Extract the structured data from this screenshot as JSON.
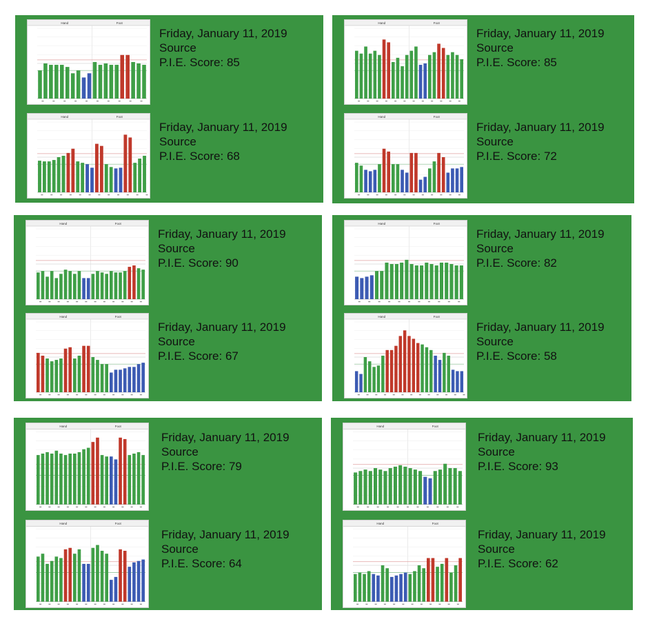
{
  "colors": {
    "panel": "#3a9441",
    "green": "#3f9f47",
    "red": "#c0392b",
    "blue": "#3c5bb3",
    "text": "#111111"
  },
  "chart_data": [
    {
      "type": "bar",
      "title": "",
      "group_labels": [
        "Hand",
        "Foot"
      ],
      "values": [
        40,
        50,
        48,
        48,
        48,
        45,
        36,
        40,
        30,
        36,
        52,
        48,
        50,
        48,
        48,
        62,
        62,
        52,
        50,
        48
      ],
      "colors": [
        "g",
        "g",
        "g",
        "g",
        "g",
        "g",
        "g",
        "g",
        "b",
        "b",
        "g",
        "g",
        "g",
        "g",
        "g",
        "r",
        "r",
        "g",
        "g",
        "g"
      ]
    },
    {
      "type": "bar",
      "title": "",
      "group_labels": [
        "Hand",
        "Foot"
      ],
      "values": [
        45,
        44,
        44,
        46,
        50,
        52,
        56,
        62,
        44,
        42,
        40,
        35,
        69,
        66,
        40,
        36,
        34,
        35,
        82,
        78,
        42,
        48,
        52
      ],
      "colors": [
        "g",
        "g",
        "g",
        "g",
        "g",
        "g",
        "r",
        "r",
        "g",
        "g",
        "b",
        "b",
        "r",
        "r",
        "g",
        "g",
        "b",
        "b",
        "r",
        "r",
        "g",
        "g",
        "g"
      ]
    },
    {
      "type": "bar",
      "title": "",
      "group_labels": [
        "Hand",
        "Foot"
      ],
      "values": [
        68,
        64,
        74,
        64,
        68,
        62,
        84,
        80,
        52,
        58,
        46,
        62,
        68,
        74,
        48,
        50,
        62,
        66,
        78,
        72,
        62,
        66,
        62,
        56
      ],
      "colors": [
        "g",
        "g",
        "g",
        "g",
        "g",
        "g",
        "r",
        "r",
        "g",
        "g",
        "g",
        "g",
        "g",
        "g",
        "b",
        "b",
        "g",
        "g",
        "r",
        "r",
        "g",
        "g",
        "g",
        "g"
      ]
    },
    {
      "type": "bar",
      "title": "",
      "group_labels": [
        "Hand",
        "Foot"
      ],
      "values": [
        42,
        38,
        32,
        30,
        32,
        40,
        62,
        58,
        40,
        40,
        32,
        28,
        56,
        56,
        18,
        22,
        34,
        44,
        56,
        50,
        28,
        34,
        34,
        36
      ],
      "colors": [
        "g",
        "g",
        "b",
        "b",
        "b",
        "g",
        "r",
        "r",
        "g",
        "g",
        "b",
        "b",
        "r",
        "r",
        "b",
        "b",
        "g",
        "g",
        "r",
        "r",
        "b",
        "b",
        "b",
        "b"
      ]
    },
    {
      "type": "bar",
      "title": "",
      "group_labels": [
        "Hand",
        "Foot"
      ],
      "values": [
        38,
        40,
        32,
        40,
        30,
        36,
        42,
        40,
        36,
        40,
        30,
        30,
        36,
        40,
        38,
        36,
        40,
        38,
        38,
        40,
        46,
        48,
        44,
        42
      ],
      "colors": [
        "g",
        "g",
        "g",
        "g",
        "g",
        "g",
        "g",
        "g",
        "g",
        "g",
        "b",
        "b",
        "g",
        "g",
        "g",
        "g",
        "g",
        "g",
        "g",
        "g",
        "r",
        "r",
        "g",
        "g"
      ]
    },
    {
      "type": "bar",
      "title": "",
      "group_labels": [
        "Hand",
        "Foot"
      ],
      "values": [
        56,
        52,
        48,
        44,
        46,
        48,
        62,
        64,
        48,
        52,
        66,
        66,
        50,
        46,
        40,
        40,
        28,
        32,
        32,
        34,
        36,
        36,
        40,
        42
      ],
      "colors": [
        "r",
        "r",
        "g",
        "g",
        "g",
        "g",
        "r",
        "r",
        "g",
        "g",
        "r",
        "r",
        "g",
        "g",
        "g",
        "g",
        "b",
        "b",
        "b",
        "b",
        "b",
        "b",
        "b",
        "b"
      ]
    },
    {
      "type": "bar",
      "title": "",
      "group_labels": [
        "Hand",
        "Foot"
      ],
      "values": [
        32,
        30,
        32,
        34,
        40,
        40,
        52,
        50,
        50,
        52,
        56,
        50,
        48,
        48,
        52,
        50,
        48,
        52,
        52,
        50,
        48,
        48
      ],
      "colors": [
        "b",
        "b",
        "b",
        "b",
        "g",
        "g",
        "g",
        "g",
        "g",
        "g",
        "g",
        "g",
        "g",
        "g",
        "g",
        "g",
        "g",
        "g",
        "g",
        "g",
        "g",
        "g"
      ]
    },
    {
      "type": "bar",
      "title": "",
      "group_labels": [
        "Hand",
        "Foot"
      ],
      "values": [
        30,
        26,
        50,
        44,
        36,
        38,
        52,
        60,
        60,
        66,
        80,
        88,
        80,
        76,
        70,
        68,
        64,
        60,
        52,
        46,
        56,
        52,
        32,
        30,
        30
      ],
      "colors": [
        "b",
        "b",
        "g",
        "g",
        "g",
        "g",
        "g",
        "r",
        "r",
        "r",
        "r",
        "r",
        "r",
        "r",
        "r",
        "g",
        "g",
        "g",
        "b",
        "b",
        "g",
        "g",
        "b",
        "b",
        "b"
      ]
    },
    {
      "type": "bar",
      "title": "",
      "group_labels": [
        "Hand",
        "Foot"
      ],
      "values": [
        68,
        70,
        72,
        70,
        74,
        70,
        68,
        70,
        70,
        72,
        76,
        78,
        86,
        92,
        68,
        66,
        66,
        62,
        92,
        90,
        68,
        70,
        72,
        68
      ],
      "colors": [
        "g",
        "g",
        "g",
        "g",
        "g",
        "g",
        "g",
        "g",
        "g",
        "g",
        "g",
        "g",
        "r",
        "r",
        "g",
        "g",
        "b",
        "b",
        "r",
        "r",
        "g",
        "g",
        "g",
        "g"
      ]
    },
    {
      "type": "bar",
      "title": "",
      "group_labels": [
        "Hand",
        "Foot"
      ],
      "values": [
        62,
        66,
        52,
        56,
        62,
        60,
        72,
        74,
        66,
        72,
        52,
        52,
        74,
        78,
        70,
        66,
        30,
        34,
        72,
        70,
        48,
        54,
        56,
        58
      ],
      "colors": [
        "g",
        "g",
        "g",
        "g",
        "g",
        "g",
        "r",
        "r",
        "g",
        "g",
        "b",
        "b",
        "g",
        "g",
        "g",
        "g",
        "b",
        "b",
        "r",
        "r",
        "b",
        "b",
        "b",
        "b"
      ]
    },
    {
      "type": "bar",
      "title": "",
      "group_labels": [
        "Hand",
        "Foot"
      ],
      "values": [
        44,
        46,
        48,
        46,
        50,
        48,
        46,
        50,
        52,
        54,
        52,
        50,
        48,
        46,
        38,
        36,
        46,
        48,
        56,
        50,
        50,
        46
      ],
      "colors": [
        "g",
        "g",
        "g",
        "g",
        "g",
        "g",
        "g",
        "g",
        "g",
        "g",
        "g",
        "g",
        "g",
        "g",
        "b",
        "b",
        "g",
        "g",
        "g",
        "g",
        "g",
        "g"
      ]
    },
    {
      "type": "bar",
      "title": "",
      "group_labels": [
        "Hand",
        "Foot"
      ],
      "values": [
        38,
        40,
        38,
        42,
        38,
        36,
        50,
        46,
        34,
        36,
        38,
        40,
        38,
        42,
        50,
        46,
        60,
        60,
        48,
        52,
        60,
        40,
        50,
        60
      ],
      "colors": [
        "g",
        "g",
        "g",
        "g",
        "b",
        "b",
        "g",
        "g",
        "b",
        "b",
        "b",
        "b",
        "g",
        "g",
        "g",
        "g",
        "r",
        "r",
        "g",
        "g",
        "r",
        "g",
        "g",
        "r"
      ]
    }
  ],
  "panels": [
    {
      "entries": [
        {
          "date": "Friday, January 11, 2019",
          "source": "Source",
          "score": "P.I.E. Score: 85"
        },
        {
          "date": "Friday, January 11, 2019",
          "source": "Source",
          "score": "P.I.E. Score: 68"
        }
      ]
    },
    {
      "entries": [
        {
          "date": "Friday, January 11, 2019",
          "source": "Source",
          "score": "P.I.E. Score: 85"
        },
        {
          "date": "Friday, January 11, 2019",
          "source": "Source",
          "score": "P.I.E. Score: 72"
        }
      ]
    },
    {
      "entries": [
        {
          "date": "Friday, January 11, 2019",
          "source": "Source",
          "score": "P.I.E. Score: 90"
        },
        {
          "date": "Friday, January 11, 2019",
          "source": "Source",
          "score": "P.I.E. Score: 67"
        }
      ]
    },
    {
      "entries": [
        {
          "date": "Friday, January 11, 2019",
          "source": "Source",
          "score": "P.I.E. Score: 82"
        },
        {
          "date": "Friday, January 11, 2019",
          "source": "Source",
          "score": "P.I.E. Score: 58"
        }
      ]
    },
    {
      "entries": [
        {
          "date": "Friday, January 11, 2019",
          "source": "Source",
          "score": "P.I.E. Score: 79"
        },
        {
          "date": "Friday, January 11, 2019",
          "source": "Source",
          "score": "P.I.E. Score: 64"
        }
      ]
    },
    {
      "entries": [
        {
          "date": "Friday, January 11, 2019",
          "source": "Source",
          "score": "P.I.E. Score: 93"
        },
        {
          "date": "Friday, January 11, 2019",
          "source": "Source",
          "score": "P.I.E. Score: 62"
        }
      ]
    }
  ]
}
